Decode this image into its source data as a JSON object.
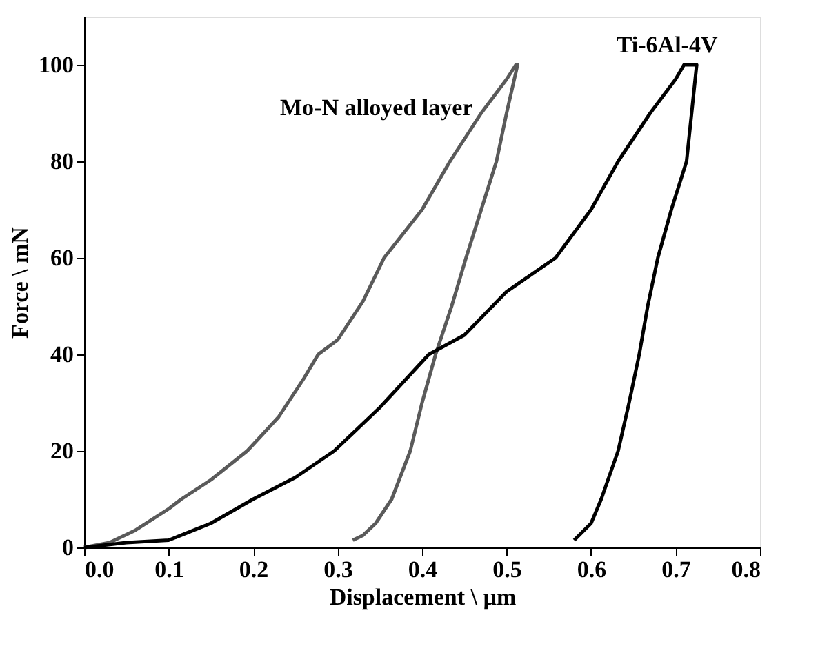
{
  "chart_data": {
    "type": "line",
    "xlabel": "Displacement \\ µm",
    "ylabel": "Force \\ mN",
    "xlim": [
      0,
      0.8
    ],
    "xticks": [
      {
        "value": 0,
        "label": "0.0"
      },
      0.1,
      0.2,
      0.3,
      0.4,
      0.5,
      0.6,
      0.7,
      0.8
    ],
    "ylim": [
      0,
      110
    ],
    "yticks": [
      0,
      20,
      40,
      60,
      80,
      100
    ],
    "grid": false,
    "legend": false,
    "marker": "none",
    "line_style": "solid",
    "series": [
      {
        "name": "Mo-N alloyed layer",
        "color": "#5a5a5a",
        "x": [
          0,
          0.03,
          0.06,
          0.1,
          0.115,
          0.15,
          0.193,
          0.23,
          0.26,
          0.277,
          0.3,
          0.33,
          0.355,
          0.4,
          0.433,
          0.47,
          0.5,
          0.511,
          0.513,
          0.5,
          0.488,
          0.47,
          0.452,
          0.435,
          0.416,
          0.4,
          0.386,
          0.364,
          0.345,
          0.33,
          0.318
        ],
        "values": [
          0,
          1,
          3.5,
          8,
          10,
          14,
          20,
          27,
          35,
          40,
          43,
          51,
          60,
          70,
          80,
          90,
          97,
          100,
          100,
          90,
          80,
          70,
          60,
          50,
          40,
          30,
          20,
          10,
          5,
          2.5,
          1.5
        ]
      },
      {
        "name": "Ti-6Al-4V",
        "color": "#000000",
        "x": [
          0,
          0.05,
          0.1,
          0.15,
          0.2,
          0.25,
          0.296,
          0.35,
          0.408,
          0.45,
          0.5,
          0.558,
          0.6,
          0.632,
          0.67,
          0.7,
          0.71,
          0.725,
          0.725,
          0.713,
          0.695,
          0.679,
          0.667,
          0.657,
          0.645,
          0.632,
          0.612,
          0.6,
          0.58
        ],
        "values": [
          0,
          1,
          1.5,
          5,
          10,
          14.5,
          20,
          29,
          40,
          44,
          53,
          60,
          70,
          80,
          90,
          97,
          100,
          100,
          100,
          80,
          70,
          60,
          50,
          40,
          30,
          20,
          10,
          5,
          1.5
        ]
      }
    ]
  }
}
